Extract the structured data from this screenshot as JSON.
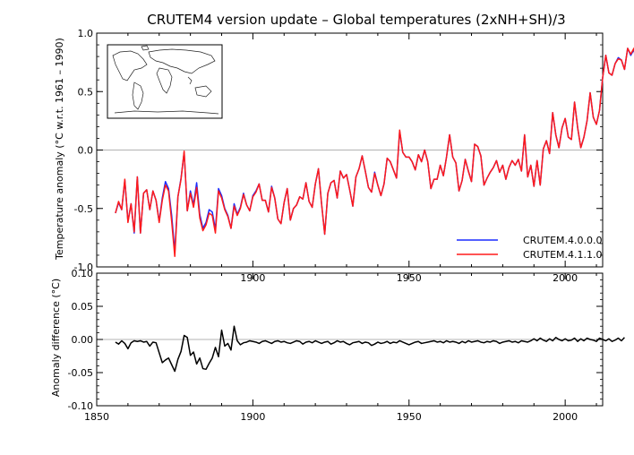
{
  "chart_data": [
    {
      "type": "line",
      "title": "CRUTEM4 version update – Global temperatures (2xNH+SH)/3",
      "ylabel": "Temperature anomaly (°C w.r.t. 1961 – 1990)",
      "xlim": [
        1850,
        2012
      ],
      "ylim": [
        -1.0,
        1.0
      ],
      "yticks": [
        -1.0,
        -0.5,
        0.0,
        0.5,
        1.0
      ],
      "ytick_labels": [
        "-1.0",
        "-0.5",
        "0.0",
        "0.5",
        "1.0"
      ],
      "xticks": [
        1900,
        1950,
        2000
      ],
      "xtick_labels": [
        "1900",
        "1950",
        "2000"
      ],
      "zero_line": true,
      "legend_position": "bottom-right",
      "inset": "world map (line drawing)",
      "x_start": 1856,
      "series": [
        {
          "name": "CRUTEM.4.0.0.0",
          "color": "#1a2bff",
          "values": [
            -0.54,
            -0.45,
            -0.51,
            -0.26,
            -0.61,
            -0.46,
            -0.71,
            -0.23,
            -0.71,
            -0.37,
            -0.34,
            -0.51,
            -0.35,
            -0.43,
            -0.61,
            -0.41,
            -0.27,
            -0.33,
            -0.56,
            -0.87,
            -0.4,
            -0.24,
            -0.02,
            -0.52,
            -0.35,
            -0.47,
            -0.28,
            -0.55,
            -0.67,
            -0.62,
            -0.51,
            -0.53,
            -0.68,
            -0.33,
            -0.39,
            -0.5,
            -0.56,
            -0.67,
            -0.46,
            -0.55,
            -0.49,
            -0.37,
            -0.47,
            -0.52,
            -0.39,
            -0.35,
            -0.29,
            -0.43,
            -0.43,
            -0.53,
            -0.31,
            -0.41,
            -0.59,
            -0.63,
            -0.45,
            -0.33,
            -0.6,
            -0.5,
            -0.47,
            -0.4,
            -0.42,
            -0.28,
            -0.44,
            -0.49,
            -0.29,
            -0.16,
            -0.46,
            -0.72,
            -0.37,
            -0.28,
            -0.26,
            -0.41,
            -0.18,
            -0.24,
            -0.21,
            -0.34,
            -0.48,
            -0.23,
            -0.16,
            -0.05,
            -0.18,
            -0.32,
            -0.36,
            -0.19,
            -0.3,
            -0.39,
            -0.29,
            -0.07,
            -0.1,
            -0.17,
            -0.24,
            0.16,
            -0.02,
            -0.06,
            -0.06,
            -0.1,
            -0.17,
            -0.04,
            -0.1,
            0.0,
            -0.1,
            -0.33,
            -0.25,
            -0.25,
            -0.13,
            -0.22,
            -0.06,
            0.13,
            -0.06,
            -0.11,
            -0.35,
            -0.26,
            -0.08,
            -0.18,
            -0.27,
            0.05,
            0.03,
            -0.05,
            -0.3,
            -0.24,
            -0.19,
            -0.15,
            -0.09,
            -0.19,
            -0.13,
            -0.25,
            -0.15,
            -0.09,
            -0.13,
            -0.08,
            -0.18,
            0.13,
            -0.23,
            -0.13,
            -0.31,
            -0.09,
            -0.3,
            0.01,
            0.08,
            -0.03,
            0.32,
            0.13,
            0.02,
            0.19,
            0.27,
            0.11,
            0.09,
            0.41,
            0.19,
            0.02,
            0.11,
            0.25,
            0.49,
            0.28,
            0.22,
            0.34,
            0.62,
            0.81,
            0.66,
            0.64,
            0.74,
            0.79,
            0.77,
            0.69,
            0.87,
            0.81,
            0.86,
            0.72,
            0.75,
            0.89
          ],
          "legend_label": "CRUTEM.4.0.0.0"
        },
        {
          "name": "CRUTEM.4.1.1.0",
          "color": "#ff1a1a",
          "values": [
            -0.54,
            -0.44,
            -0.51,
            -0.25,
            -0.62,
            -0.46,
            -0.7,
            -0.23,
            -0.71,
            -0.37,
            -0.34,
            -0.51,
            -0.35,
            -0.43,
            -0.62,
            -0.43,
            -0.3,
            -0.35,
            -0.61,
            -0.91,
            -0.4,
            -0.25,
            -0.01,
            -0.52,
            -0.37,
            -0.49,
            -0.32,
            -0.58,
            -0.69,
            -0.64,
            -0.54,
            -0.56,
            -0.71,
            -0.35,
            -0.41,
            -0.51,
            -0.57,
            -0.67,
            -0.48,
            -0.56,
            -0.5,
            -0.38,
            -0.47,
            -0.52,
            -0.4,
            -0.36,
            -0.29,
            -0.43,
            -0.43,
            -0.53,
            -0.32,
            -0.41,
            -0.59,
            -0.63,
            -0.45,
            -0.33,
            -0.6,
            -0.5,
            -0.47,
            -0.4,
            -0.42,
            -0.28,
            -0.44,
            -0.49,
            -0.29,
            -0.16,
            -0.46,
            -0.72,
            -0.37,
            -0.28,
            -0.26,
            -0.41,
            -0.18,
            -0.24,
            -0.21,
            -0.34,
            -0.48,
            -0.23,
            -0.16,
            -0.05,
            -0.18,
            -0.32,
            -0.36,
            -0.2,
            -0.3,
            -0.39,
            -0.29,
            -0.07,
            -0.1,
            -0.17,
            -0.24,
            0.17,
            -0.02,
            -0.06,
            -0.06,
            -0.1,
            -0.17,
            -0.04,
            -0.1,
            0.0,
            -0.1,
            -0.33,
            -0.25,
            -0.25,
            -0.13,
            -0.22,
            -0.06,
            0.13,
            -0.06,
            -0.11,
            -0.35,
            -0.26,
            -0.08,
            -0.18,
            -0.27,
            0.05,
            0.03,
            -0.05,
            -0.3,
            -0.24,
            -0.19,
            -0.15,
            -0.09,
            -0.19,
            -0.13,
            -0.25,
            -0.15,
            -0.09,
            -0.13,
            -0.08,
            -0.18,
            0.13,
            -0.23,
            -0.13,
            -0.31,
            -0.09,
            -0.3,
            0.01,
            0.08,
            -0.03,
            0.32,
            0.13,
            0.02,
            0.19,
            0.27,
            0.11,
            0.09,
            0.41,
            0.19,
            0.02,
            0.11,
            0.25,
            0.49,
            0.28,
            0.22,
            0.34,
            0.62,
            0.81,
            0.66,
            0.64,
            0.74,
            0.78,
            0.77,
            0.69,
            0.87,
            0.82,
            0.87,
            0.71,
            0.75,
            0.89
          ],
          "legend_label": "CRUTEM.4.1.1.0"
        }
      ]
    },
    {
      "type": "line",
      "title": "",
      "ylabel": "Anomaly difference (°C)",
      "xlim": [
        1850,
        2012
      ],
      "ylim": [
        -0.1,
        0.1
      ],
      "yticks": [
        -0.1,
        -0.05,
        0.0,
        0.05,
        0.1
      ],
      "ytick_labels": [
        "-0.10",
        "-0.05",
        "0.00",
        "0.05",
        "0.10"
      ],
      "xticks": [
        1850,
        1900,
        1950,
        2000
      ],
      "xtick_labels": [
        "1850",
        "1900",
        "1950",
        "2000"
      ],
      "zero_line": true,
      "x_start": 1856,
      "series": [
        {
          "name": "difference",
          "color": "#000000",
          "values": [
            -0.004,
            -0.007,
            -0.002,
            -0.006,
            -0.014,
            -0.005,
            -0.002,
            -0.003,
            -0.002,
            -0.004,
            -0.003,
            -0.01,
            -0.004,
            -0.005,
            -0.02,
            -0.035,
            -0.031,
            -0.028,
            -0.038,
            -0.048,
            -0.03,
            -0.018,
            0.006,
            0.003,
            -0.024,
            -0.019,
            -0.037,
            -0.028,
            -0.044,
            -0.045,
            -0.036,
            -0.028,
            -0.012,
            -0.026,
            0.014,
            -0.01,
            -0.006,
            -0.016,
            0.02,
            -0.002,
            -0.008,
            -0.005,
            -0.004,
            -0.002,
            -0.003,
            -0.004,
            -0.006,
            -0.003,
            -0.002,
            -0.004,
            -0.006,
            -0.003,
            -0.002,
            -0.004,
            -0.003,
            -0.005,
            -0.006,
            -0.004,
            -0.002,
            -0.003,
            -0.007,
            -0.004,
            -0.003,
            -0.005,
            -0.002,
            -0.004,
            -0.006,
            -0.004,
            -0.003,
            -0.007,
            -0.005,
            -0.002,
            -0.004,
            -0.003,
            -0.006,
            -0.008,
            -0.005,
            -0.004,
            -0.003,
            -0.006,
            -0.004,
            -0.005,
            -0.009,
            -0.007,
            -0.004,
            -0.006,
            -0.005,
            -0.003,
            -0.006,
            -0.004,
            -0.005,
            -0.002,
            -0.004,
            -0.006,
            -0.008,
            -0.006,
            -0.004,
            -0.003,
            -0.006,
            -0.005,
            -0.004,
            -0.003,
            -0.002,
            -0.004,
            -0.003,
            -0.005,
            -0.002,
            -0.004,
            -0.003,
            -0.004,
            -0.006,
            -0.003,
            -0.005,
            -0.002,
            -0.004,
            -0.003,
            -0.002,
            -0.004,
            -0.005,
            -0.003,
            -0.004,
            -0.002,
            -0.003,
            -0.006,
            -0.004,
            -0.003,
            -0.002,
            -0.004,
            -0.003,
            -0.005,
            -0.002,
            -0.003,
            -0.004,
            -0.002,
            0.001,
            -0.002,
            0.002,
            -0.001,
            -0.003,
            0.001,
            -0.002,
            0.003,
            0.0,
            -0.002,
            0.001,
            -0.002,
            -0.001,
            0.002,
            -0.003,
            0.001,
            -0.002,
            0.002,
            0.0,
            -0.001,
            -0.003,
            0.002,
            0.0,
            -0.002,
            0.001,
            -0.003,
            -0.001,
            0.002,
            -0.002,
            0.003
          ]
        }
      ]
    }
  ]
}
